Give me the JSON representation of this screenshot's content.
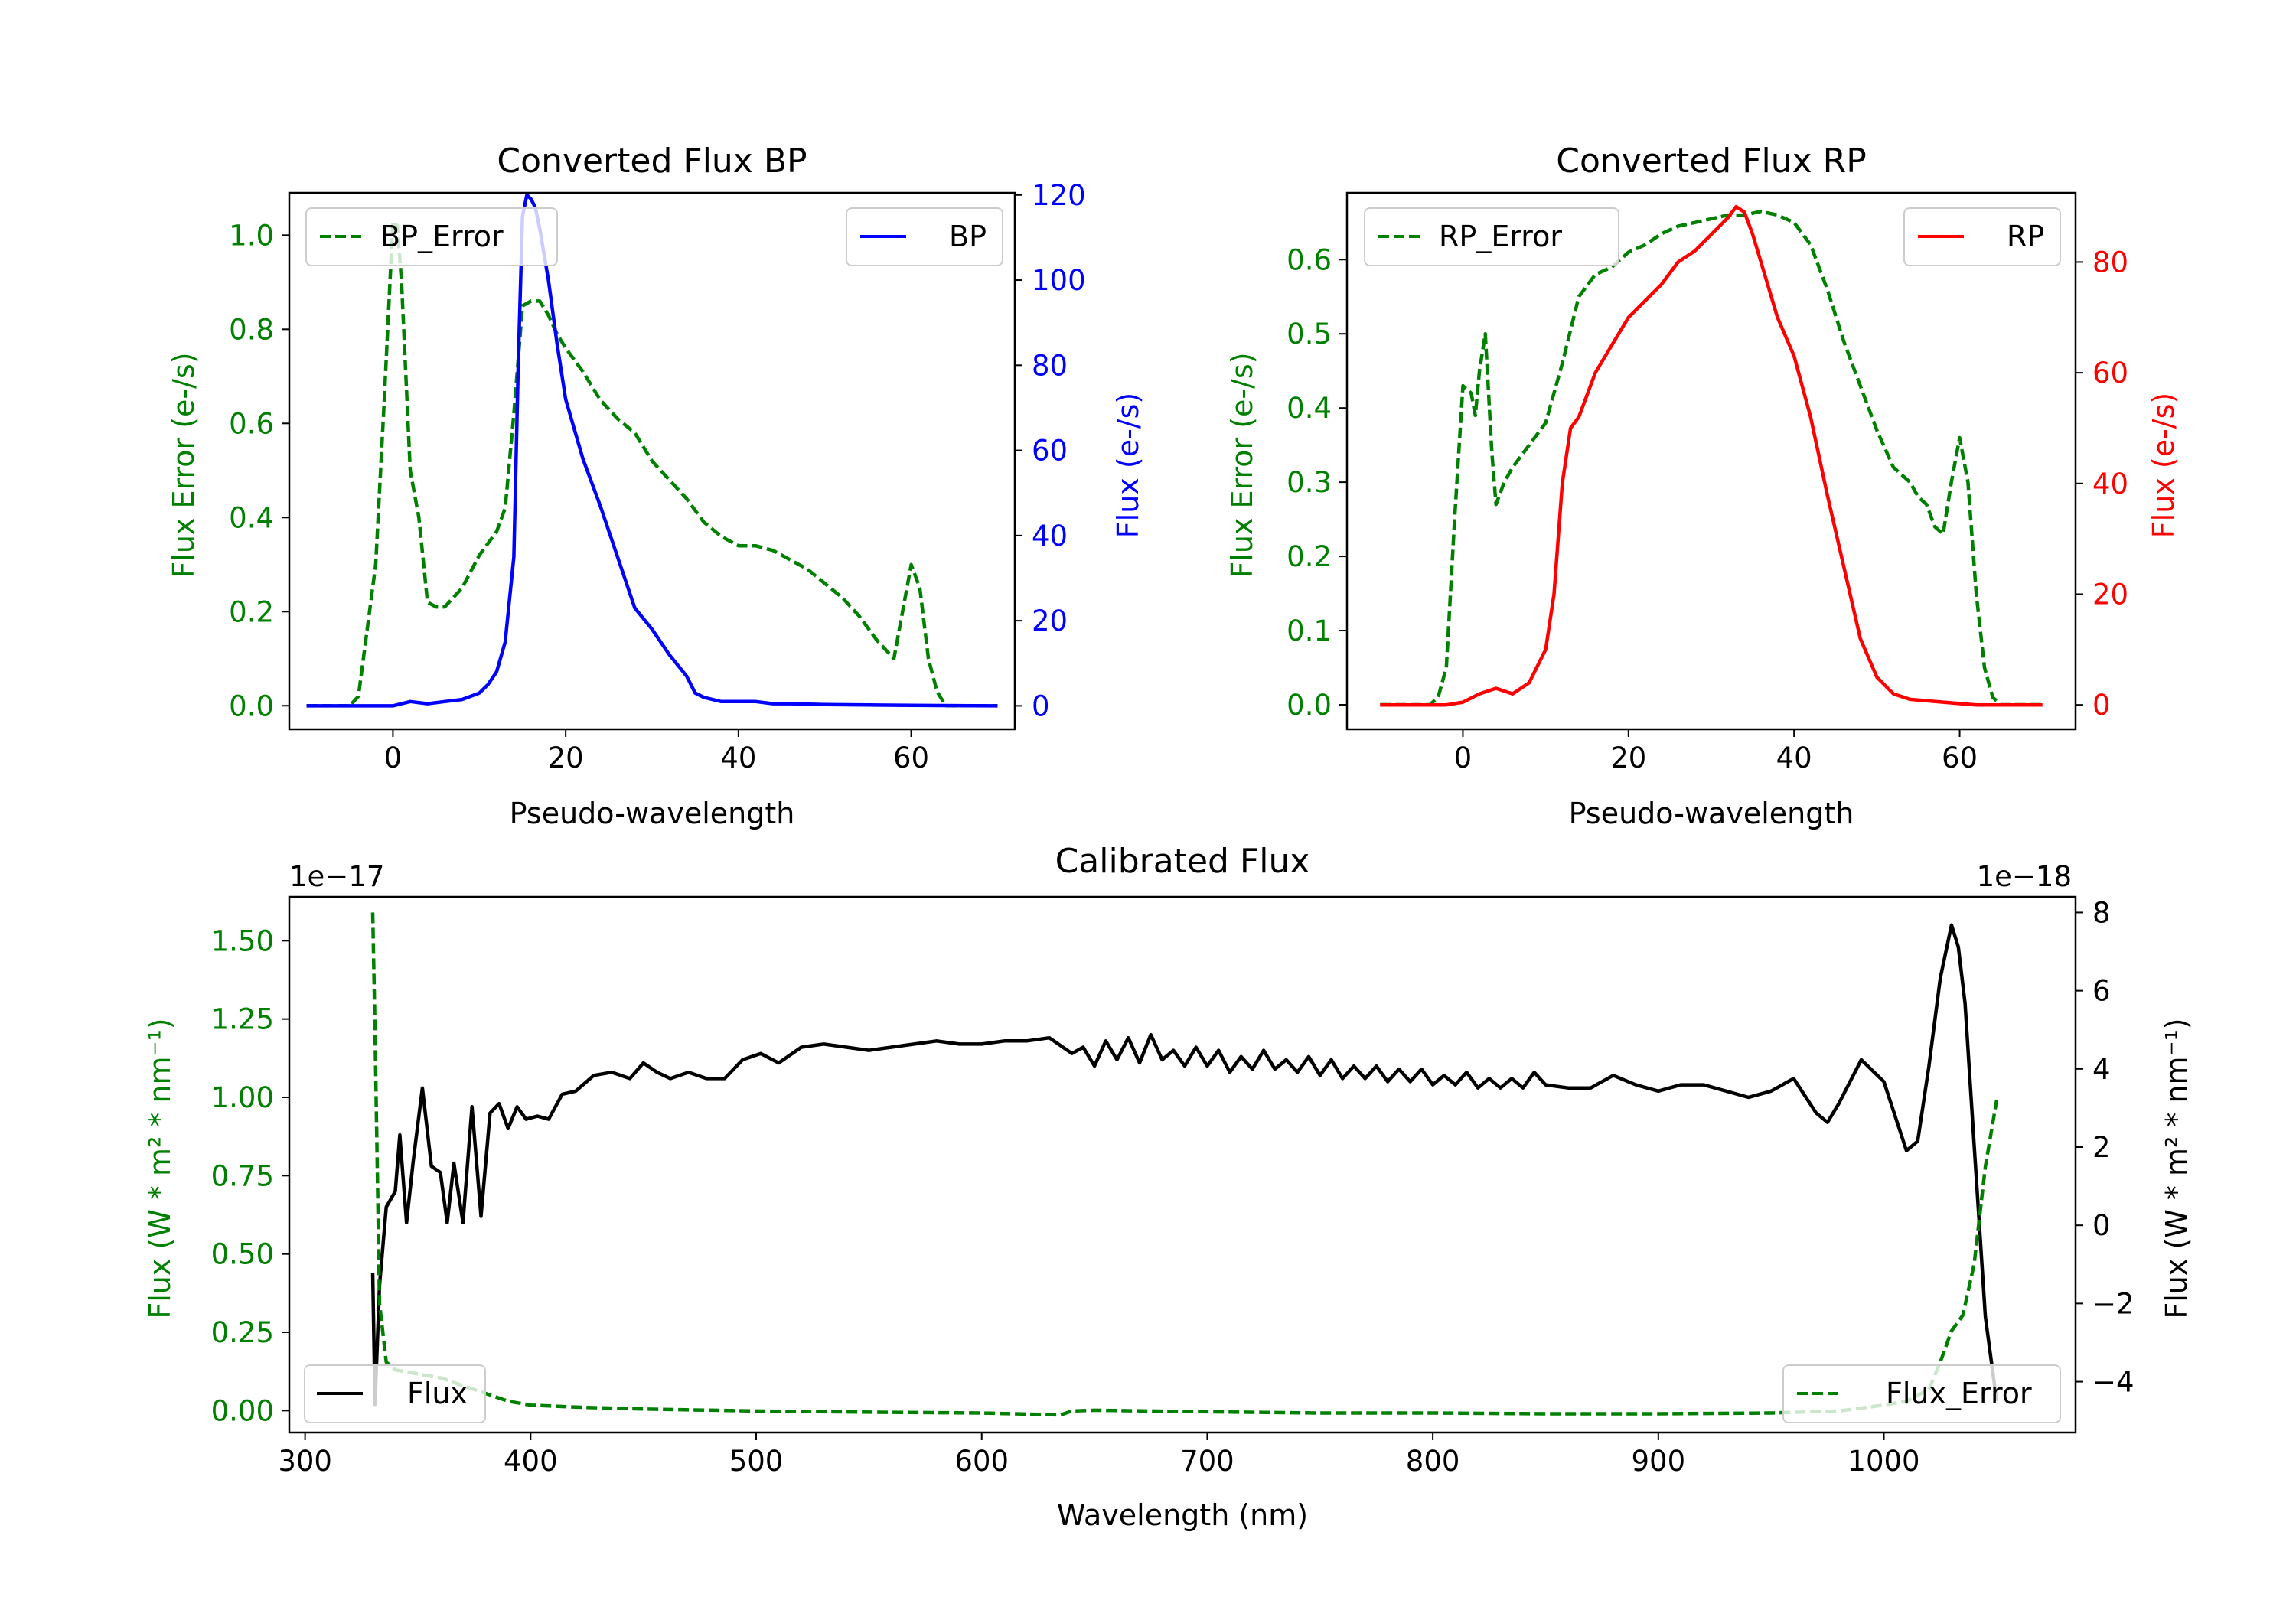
{
  "figure": {
    "colors": {
      "error": "#008000",
      "bp": "#0000ff",
      "rp": "#ff0000",
      "flux": "#000000"
    }
  },
  "chart_data": [
    {
      "id": "bp",
      "type": "line",
      "title": "Converted Flux BP",
      "xlabel": "Pseudo-wavelength",
      "ylabel_left": "Flux Error (e-/s)",
      "ylabel_right": "Flux (e-/s)",
      "xlim": [
        -12,
        72
      ],
      "ylim_left": [
        -0.05,
        1.09
      ],
      "ylim_right": [
        -5.5,
        120.5
      ],
      "xticks": [
        0,
        20,
        40,
        60
      ],
      "xtick_labels": [
        "0",
        "20",
        "40",
        "60"
      ],
      "yticks_left": [
        0,
        0.2,
        0.4,
        0.6,
        0.8,
        1.0
      ],
      "ytick_labels_left": [
        "0.0",
        "0.2",
        "0.4",
        "0.6",
        "0.8",
        "1.0"
      ],
      "yticks_right": [
        0,
        20,
        40,
        60,
        80,
        100,
        120
      ],
      "ytick_labels_right": [
        "0",
        "20",
        "40",
        "60",
        "80",
        "100",
        "120"
      ],
      "right_color": "#0000ff",
      "left_color": "#008000",
      "legend_left": "BP_Error",
      "legend_right": "BP",
      "series": [
        {
          "name": "BP_Error",
          "axis": "left",
          "style": "dashed",
          "color": "#008000",
          "x": [
            -10,
            -5,
            -4,
            -2,
            -1,
            0,
            0.5,
            1,
            2,
            3,
            4,
            5,
            6,
            8,
            10,
            12,
            13,
            14,
            15,
            16,
            17,
            18,
            19,
            20,
            22,
            24,
            26,
            28,
            30,
            32,
            34,
            36,
            38,
            40,
            42,
            44,
            46,
            48,
            50,
            52,
            54,
            56,
            57,
            58,
            59,
            60,
            61,
            62,
            63,
            64,
            65,
            70
          ],
          "values": [
            0,
            0,
            0.02,
            0.3,
            0.65,
            1.03,
            1.02,
            0.9,
            0.5,
            0.4,
            0.22,
            0.21,
            0.21,
            0.25,
            0.32,
            0.37,
            0.42,
            0.62,
            0.85,
            0.86,
            0.86,
            0.83,
            0.79,
            0.76,
            0.71,
            0.65,
            0.61,
            0.58,
            0.52,
            0.48,
            0.44,
            0.39,
            0.36,
            0.34,
            0.34,
            0.33,
            0.31,
            0.29,
            0.26,
            0.23,
            0.19,
            0.14,
            0.12,
            0.1,
            0.2,
            0.3,
            0.25,
            0.1,
            0.03,
            0,
            0,
            0
          ]
        },
        {
          "name": "BP",
          "axis": "right",
          "style": "solid",
          "color": "#0000ff",
          "x": [
            -10,
            0,
            2,
            4,
            6,
            8,
            10,
            11,
            12,
            13,
            14,
            14.5,
            15,
            15.5,
            16,
            16.5,
            17,
            18,
            19,
            20,
            22,
            24,
            26,
            28,
            30,
            32,
            34,
            35,
            36,
            38,
            40,
            42,
            44,
            46,
            50,
            55,
            60,
            70
          ],
          "values": [
            0,
            0,
            1,
            0.5,
            1,
            1.5,
            3,
            5,
            8,
            15,
            35,
            80,
            115,
            120,
            119,
            117,
            112,
            100,
            85,
            72,
            58,
            47,
            35,
            23,
            18,
            12,
            7,
            3,
            2,
            1,
            1,
            1,
            0.5,
            0.5,
            0.3,
            0.2,
            0.1,
            0
          ]
        }
      ]
    },
    {
      "id": "rp",
      "type": "line",
      "title": "Converted Flux RP",
      "xlabel": "Pseudo-wavelength",
      "ylabel_left": "Flux Error (e-/s)",
      "ylabel_right": "Flux (e-/s)",
      "xlim": [
        -14,
        74
      ],
      "ylim_left": [
        -0.033,
        0.69
      ],
      "ylim_right": [
        -4.4,
        92.5
      ],
      "xticks": [
        0,
        20,
        40,
        60
      ],
      "xtick_labels": [
        "0",
        "20",
        "40",
        "60"
      ],
      "yticks_left": [
        0,
        0.1,
        0.2,
        0.3,
        0.4,
        0.5,
        0.6
      ],
      "ytick_labels_left": [
        "0.0",
        "0.1",
        "0.2",
        "0.3",
        "0.4",
        "0.5",
        "0.6"
      ],
      "yticks_right": [
        0,
        20,
        40,
        60,
        80
      ],
      "ytick_labels_right": [
        "0",
        "20",
        "40",
        "60",
        "80"
      ],
      "right_color": "#ff0000",
      "left_color": "#008000",
      "legend_left": "RP_Error",
      "legend_right": "RP",
      "series": [
        {
          "name": "RP_Error",
          "axis": "left",
          "style": "dashed",
          "color": "#008000",
          "x": [
            -10,
            -4,
            -3,
            -2,
            -1,
            0,
            1,
            1.5,
            2,
            2.7,
            3.5,
            4,
            5,
            6,
            8,
            10,
            12,
            14,
            16,
            18,
            20,
            22,
            24,
            26,
            28,
            30,
            32,
            34,
            36,
            38,
            40,
            42,
            44,
            46,
            48,
            50,
            52,
            54,
            55,
            56,
            57,
            58,
            59,
            60,
            61,
            62,
            63,
            64,
            65,
            70
          ],
          "values": [
            0,
            0,
            0.01,
            0.05,
            0.25,
            0.43,
            0.42,
            0.39,
            0.45,
            0.5,
            0.34,
            0.27,
            0.3,
            0.32,
            0.35,
            0.38,
            0.46,
            0.55,
            0.58,
            0.59,
            0.61,
            0.62,
            0.635,
            0.645,
            0.65,
            0.655,
            0.66,
            0.66,
            0.665,
            0.66,
            0.65,
            0.62,
            0.56,
            0.49,
            0.43,
            0.37,
            0.32,
            0.3,
            0.28,
            0.27,
            0.24,
            0.23,
            0.3,
            0.36,
            0.3,
            0.15,
            0.05,
            0.01,
            0,
            0
          ]
        },
        {
          "name": "RP",
          "axis": "right",
          "style": "solid",
          "color": "#ff0000",
          "x": [
            -10,
            -2,
            0,
            2,
            4,
            6,
            8,
            10,
            11,
            12,
            13,
            14,
            15,
            16,
            18,
            20,
            22,
            24,
            26,
            28,
            30,
            32,
            33,
            34,
            35,
            36,
            37,
            38,
            40,
            42,
            44,
            46,
            48,
            50,
            52,
            54,
            58,
            62,
            70
          ],
          "values": [
            0,
            0,
            0.5,
            2,
            3,
            2,
            4,
            10,
            20,
            40,
            50,
            52,
            56,
            60,
            65,
            70,
            73,
            76,
            80,
            82,
            85,
            88,
            90,
            89,
            85,
            80,
            75,
            70,
            63,
            52,
            38,
            25,
            12,
            5,
            2,
            1,
            0.5,
            0,
            0
          ]
        }
      ]
    },
    {
      "id": "calibrated",
      "type": "line",
      "title": "Calibrated Flux",
      "xlabel": "Wavelength (nm)",
      "ylabel_left": "Flux (W * m² * nm⁻¹)",
      "ylabel_right": "Flux (W * m² * nm⁻¹)",
      "left_offset_text": "1e−17",
      "right_offset_text": "1e−18",
      "xlim": [
        293,
        1085
      ],
      "ylim_left": [
        -0.07,
        1.64
      ],
      "ylim_right": [
        -5.3,
        8.4
      ],
      "xticks": [
        300,
        400,
        500,
        600,
        700,
        800,
        900,
        1000
      ],
      "xtick_labels": [
        "300",
        "400",
        "500",
        "600",
        "700",
        "800",
        "900",
        "1000"
      ],
      "yticks_left": [
        0,
        0.25,
        0.5,
        0.75,
        1.0,
        1.25,
        1.5
      ],
      "ytick_labels_left": [
        "0.00",
        "0.25",
        "0.50",
        "0.75",
        "1.00",
        "1.25",
        "1.50"
      ],
      "yticks_right": [
        -4,
        -2,
        0,
        2,
        4,
        6,
        8
      ],
      "ytick_labels_right": [
        "−4",
        "−2",
        "0",
        "2",
        "4",
        "6",
        "8"
      ],
      "right_color": "#000000",
      "left_color": "#008000",
      "legend_left": "Flux",
      "legend_right": "Flux_Error",
      "series": [
        {
          "name": "Flux",
          "axis": "left",
          "style": "solid",
          "color": "#000000",
          "x": [
            330,
            331,
            333,
            336,
            340,
            342,
            345,
            348,
            352,
            356,
            360,
            363,
            366,
            370,
            374,
            378,
            382,
            386,
            390,
            394,
            398,
            403,
            408,
            414,
            420,
            428,
            436,
            444,
            450,
            456,
            462,
            470,
            478,
            486,
            494,
            502,
            510,
            520,
            530,
            540,
            550,
            560,
            570,
            580,
            590,
            600,
            610,
            620,
            630,
            640,
            645,
            650,
            655,
            660,
            665,
            670,
            675,
            680,
            685,
            690,
            695,
            700,
            705,
            710,
            715,
            720,
            725,
            730,
            735,
            740,
            745,
            750,
            755,
            760,
            765,
            770,
            775,
            780,
            785,
            790,
            795,
            800,
            805,
            810,
            815,
            820,
            825,
            830,
            835,
            840,
            845,
            850,
            860,
            870,
            880,
            890,
            900,
            910,
            920,
            940,
            950,
            960,
            970,
            975,
            980,
            990,
            1000,
            1010,
            1015,
            1020,
            1025,
            1030,
            1033,
            1036,
            1040,
            1045,
            1050
          ],
          "values": [
            0.44,
            0.02,
            0.4,
            0.65,
            0.7,
            0.88,
            0.6,
            0.8,
            1.03,
            0.78,
            0.76,
            0.6,
            0.79,
            0.6,
            0.97,
            0.62,
            0.95,
            0.98,
            0.9,
            0.97,
            0.93,
            0.94,
            0.93,
            1.01,
            1.02,
            1.07,
            1.08,
            1.06,
            1.11,
            1.08,
            1.06,
            1.08,
            1.06,
            1.06,
            1.12,
            1.14,
            1.11,
            1.16,
            1.17,
            1.16,
            1.15,
            1.16,
            1.17,
            1.18,
            1.17,
            1.17,
            1.18,
            1.18,
            1.19,
            1.14,
            1.16,
            1.1,
            1.18,
            1.12,
            1.19,
            1.11,
            1.2,
            1.12,
            1.15,
            1.1,
            1.16,
            1.1,
            1.15,
            1.08,
            1.13,
            1.09,
            1.15,
            1.09,
            1.12,
            1.08,
            1.13,
            1.07,
            1.12,
            1.06,
            1.1,
            1.06,
            1.1,
            1.05,
            1.09,
            1.05,
            1.09,
            1.04,
            1.07,
            1.04,
            1.08,
            1.03,
            1.06,
            1.03,
            1.06,
            1.03,
            1.08,
            1.04,
            1.03,
            1.03,
            1.07,
            1.04,
            1.02,
            1.04,
            1.04,
            1.0,
            1.02,
            1.06,
            0.95,
            0.92,
            0.98,
            1.12,
            1.05,
            0.83,
            0.86,
            1.1,
            1.38,
            1.55,
            1.48,
            1.3,
            0.85,
            0.3,
            0.03
          ]
        },
        {
          "name": "Flux_Error",
          "axis": "right",
          "style": "dashed",
          "color": "#008000",
          "x": [
            330,
            331,
            333,
            336,
            340,
            350,
            360,
            370,
            380,
            390,
            400,
            420,
            450,
            500,
            550,
            600,
            635,
            640,
            650,
            700,
            750,
            800,
            850,
            900,
            950,
            980,
            1000,
            1010,
            1020,
            1025,
            1030,
            1035,
            1040,
            1045,
            1050
          ],
          "values": [
            8.0,
            5.0,
            -2.0,
            -3.5,
            -3.7,
            -3.8,
            -3.9,
            -4.1,
            -4.3,
            -4.5,
            -4.6,
            -4.65,
            -4.7,
            -4.75,
            -4.78,
            -4.8,
            -4.85,
            -4.75,
            -4.73,
            -4.77,
            -4.8,
            -4.8,
            -4.82,
            -4.82,
            -4.8,
            -4.75,
            -4.6,
            -4.5,
            -4.2,
            -3.5,
            -2.7,
            -2.3,
            -1.0,
            1.5,
            3.2
          ]
        }
      ]
    }
  ]
}
